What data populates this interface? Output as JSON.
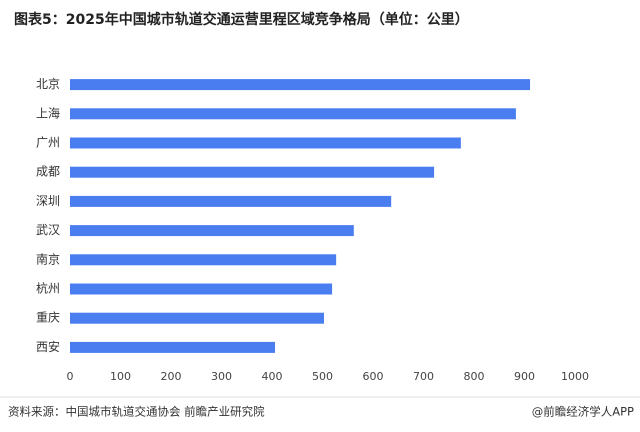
{
  "chart_data": {
    "type": "bar",
    "orientation": "horizontal",
    "title": "图表5：2025年中国城市轨道交通运营里程区域竞争格局（单位：公里）",
    "categories": [
      "北京",
      "上海",
      "广州",
      "成都",
      "深圳",
      "武汉",
      "南京",
      "杭州",
      "重庆",
      "西安"
    ],
    "values": [
      911,
      883,
      774,
      721,
      636,
      562,
      527,
      519,
      503,
      406
    ],
    "color": "#4a7ef0",
    "xlim": [
      0,
      1000
    ],
    "xticks": [
      0,
      100,
      200,
      300,
      400,
      500,
      600,
      700,
      800,
      900,
      1000
    ],
    "grid": false,
    "source": "资料来源：中国城市轨道交通协会  前瞻产业研究院",
    "credit": "@前瞻经济学人APP"
  }
}
